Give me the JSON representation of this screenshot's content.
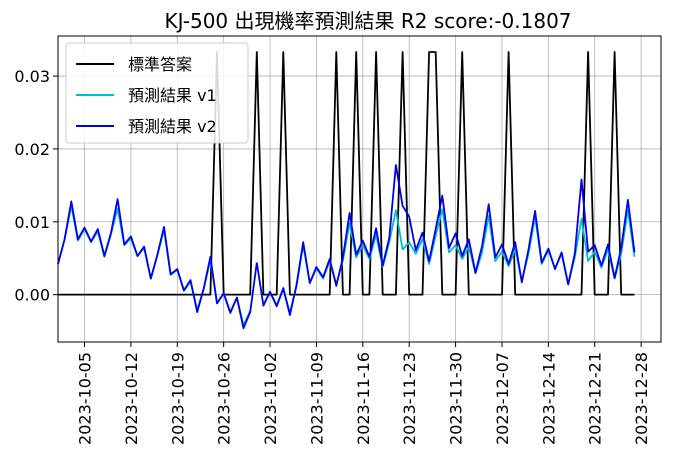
{
  "chart_data": {
    "type": "line",
    "title": "KJ-500 出現機率預測結果  R2 score:-0.1807",
    "xlabel": "",
    "ylabel": "",
    "x_ticks": [
      "2023-10-05",
      "2023-10-12",
      "2023-10-19",
      "2023-10-26",
      "2023-11-02",
      "2023-11-09",
      "2023-11-16",
      "2023-11-23",
      "2023-11-30",
      "2023-12-07",
      "2023-12-14",
      "2023-12-21",
      "2023-12-28"
    ],
    "y_ticks": [
      "0.00",
      "0.01",
      "0.02",
      "0.03"
    ],
    "y_tick_values": [
      0,
      0.01,
      0.02,
      0.03
    ],
    "xlim": [
      "2023-10-01",
      "2023-12-31"
    ],
    "ylim": [
      -0.0065,
      0.0355
    ],
    "grid": true,
    "legend_position": "top-left",
    "series": [
      {
        "name": "標準答案",
        "color": "#000000",
        "points": [
          [
            "2023-10-01",
            0
          ],
          [
            "2023-10-24",
            0
          ],
          [
            "2023-10-25",
            0.0333
          ],
          [
            "2023-10-26",
            0
          ],
          [
            "2023-10-30",
            0
          ],
          [
            "2023-10-31",
            0.0333
          ],
          [
            "2023-11-01",
            0
          ],
          [
            "2023-11-03",
            0
          ],
          [
            "2023-11-04",
            0.0333
          ],
          [
            "2023-11-05",
            0
          ],
          [
            "2023-11-11",
            0
          ],
          [
            "2023-11-12",
            0.0333
          ],
          [
            "2023-11-13",
            0
          ],
          [
            "2023-11-14",
            0
          ],
          [
            "2023-11-15",
            0.0333
          ],
          [
            "2023-11-16",
            0
          ],
          [
            "2023-11-17",
            0
          ],
          [
            "2023-11-18",
            0.0333
          ],
          [
            "2023-11-19",
            0
          ],
          [
            "2023-11-21",
            0
          ],
          [
            "2023-11-22",
            0.0333
          ],
          [
            "2023-11-23",
            0
          ],
          [
            "2023-11-25",
            0
          ],
          [
            "2023-11-26",
            0.0333
          ],
          [
            "2023-11-27",
            0.0333
          ],
          [
            "2023-11-28",
            0
          ],
          [
            "2023-11-30",
            0
          ],
          [
            "2023-12-01",
            0.0333
          ],
          [
            "2023-12-02",
            0
          ],
          [
            "2023-12-07",
            0
          ],
          [
            "2023-12-08",
            0.0333
          ],
          [
            "2023-12-09",
            0
          ],
          [
            "2023-12-19",
            0
          ],
          [
            "2023-12-20",
            0.0333
          ],
          [
            "2023-12-21",
            0
          ],
          [
            "2023-12-23",
            0
          ],
          [
            "2023-12-24",
            0.0333
          ],
          [
            "2023-12-25",
            0
          ],
          [
            "2023-12-27",
            0
          ]
        ]
      },
      {
        "name": "預測結果 v1",
        "color": "#00bcd4",
        "segments": [
          [
            [
              "2023-10-01",
              0.0042
            ],
            [
              "2023-10-02",
              0.0076
            ],
            [
              "2023-10-03",
              0.0122
            ],
            [
              "2023-10-04",
              0.0074
            ],
            [
              "2023-10-05",
              0.009
            ],
            [
              "2023-10-06",
              0.0072
            ],
            [
              "2023-10-07",
              0.0087
            ],
            [
              "2023-10-08",
              0.0052
            ],
            [
              "2023-10-09",
              0.0083
            ],
            [
              "2023-10-10",
              0.0118
            ],
            [
              "2023-10-11",
              0.0068
            ],
            [
              "2023-10-12",
              0.0077
            ],
            [
              "2023-10-13",
              0.0053
            ],
            [
              "2023-10-14",
              0.0064
            ],
            [
              "2023-10-15",
              0.0022
            ],
            [
              "2023-10-16",
              0.0054
            ],
            [
              "2023-10-17",
              0.0089
            ],
            [
              "2023-10-18",
              0.0027
            ],
            [
              "2023-10-19",
              0.0034
            ],
            [
              "2023-10-20",
              0.0005
            ],
            [
              "2023-10-21",
              0.0018
            ],
            [
              "2023-10-22",
              -0.0021
            ],
            [
              "2023-10-23",
              0.0008
            ],
            [
              "2023-10-24",
              0.0048
            ],
            [
              "2023-10-25",
              -0.0012
            ],
            [
              "2023-10-26",
              0.0002
            ],
            [
              "2023-10-27",
              -0.0024
            ],
            [
              "2023-10-28",
              -0.0004
            ],
            [
              "2023-10-29",
              -0.0042
            ],
            [
              "2023-10-30",
              -0.0022
            ]
          ],
          [
            [
              "2023-11-01",
              -0.0013
            ],
            [
              "2023-11-02",
              0.0003
            ],
            [
              "2023-11-03",
              -0.0014
            ],
            [
              "2023-11-04",
              0.0007
            ],
            [
              "2023-11-05",
              -0.0025
            ],
            [
              "2023-11-06",
              0.0012
            ],
            [
              "2023-11-07",
              0.0068
            ],
            [
              "2023-11-08",
              0.0016
            ],
            [
              "2023-11-09",
              0.0036
            ],
            [
              "2023-11-10",
              0.0022
            ],
            [
              "2023-11-11",
              0.0046
            ],
            [
              "2023-11-12",
              0.0014
            ],
            [
              "2023-11-13",
              0.0047
            ],
            [
              "2023-11-14",
              0.0098
            ],
            [
              "2023-11-15",
              0.0051
            ],
            [
              "2023-11-16",
              0.0068
            ],
            [
              "2023-11-17",
              0.0049
            ],
            [
              "2023-11-18",
              0.0082
            ],
            [
              "2023-11-19",
              0.0038
            ],
            [
              "2023-11-20",
              0.0072
            ],
            [
              "2023-11-21",
              0.0116
            ],
            [
              "2023-11-22",
              0.0062
            ],
            [
              "2023-11-23",
              0.0072
            ],
            [
              "2023-11-24",
              0.0056
            ],
            [
              "2023-11-25",
              0.0076
            ],
            [
              "2023-11-26",
              0.0042
            ],
            [
              "2023-11-27",
              0.0081
            ],
            [
              "2023-11-28",
              0.0117
            ],
            [
              "2023-11-29",
              0.0058
            ],
            [
              "2023-11-30",
              0.0068
            ],
            [
              "2023-12-01",
              0.0049
            ],
            [
              "2023-12-02",
              0.0066
            ],
            [
              "2023-12-03",
              0.0029
            ],
            [
              "2023-12-04",
              0.0058
            ],
            [
              "2023-12-05",
              0.0108
            ],
            [
              "2023-12-06",
              0.0046
            ],
            [
              "2023-12-07",
              0.0059
            ],
            [
              "2023-12-08",
              0.0039
            ],
            [
              "2023-12-09",
              0.0062
            ],
            [
              "2023-12-10",
              0.0019
            ],
            [
              "2023-12-11",
              0.0056
            ],
            [
              "2023-12-12",
              0.0107
            ],
            [
              "2023-12-13",
              0.0042
            ],
            [
              "2023-12-14",
              0.0061
            ],
            [
              "2023-12-15",
              0.0036
            ],
            [
              "2023-12-16",
              0.0056
            ],
            [
              "2023-12-17",
              0.0014
            ],
            [
              "2023-12-18",
              0.0052
            ],
            [
              "2023-12-19",
              0.0104
            ],
            [
              "2023-12-20",
              0.0046
            ],
            [
              "2023-12-21",
              0.0059
            ],
            [
              "2023-12-22",
              0.0037
            ],
            [
              "2023-12-23",
              0.0062
            ],
            [
              "2023-12-24",
              0.0022
            ],
            [
              "2023-12-25",
              0.0056
            ],
            [
              "2023-12-26",
              0.0116
            ],
            [
              "2023-12-27",
              0.0052
            ]
          ]
        ]
      },
      {
        "name": "預測結果 v2",
        "color": "#0000ee",
        "segments": [
          [
            [
              "2023-10-01",
              0.0042
            ],
            [
              "2023-10-02",
              0.0076
            ],
            [
              "2023-10-03",
              0.0128
            ],
            [
              "2023-10-04",
              0.0076
            ],
            [
              "2023-10-05",
              0.0092
            ],
            [
              "2023-10-06",
              0.0073
            ],
            [
              "2023-10-07",
              0.009
            ],
            [
              "2023-10-08",
              0.0053
            ],
            [
              "2023-10-09",
              0.0085
            ],
            [
              "2023-10-10",
              0.0131
            ],
            [
              "2023-10-11",
              0.0069
            ],
            [
              "2023-10-12",
              0.008
            ],
            [
              "2023-10-13",
              0.0053
            ],
            [
              "2023-10-14",
              0.0066
            ],
            [
              "2023-10-15",
              0.0022
            ],
            [
              "2023-10-16",
              0.0055
            ],
            [
              "2023-10-17",
              0.0093
            ],
            [
              "2023-10-18",
              0.0028
            ],
            [
              "2023-10-19",
              0.0035
            ],
            [
              "2023-10-20",
              0.0006
            ],
            [
              "2023-10-21",
              0.002
            ],
            [
              "2023-10-22",
              -0.0024
            ],
            [
              "2023-10-23",
              0.0009
            ],
            [
              "2023-10-24",
              0.0052
            ],
            [
              "2023-10-25",
              -0.0012
            ],
            [
              "2023-10-26",
              0.0002
            ],
            [
              "2023-10-27",
              -0.0025
            ],
            [
              "2023-10-28",
              -0.0004
            ],
            [
              "2023-10-29",
              -0.0046
            ],
            [
              "2023-10-30",
              -0.0024
            ],
            [
              "2023-10-31",
              0.0044
            ]
          ],
          [
            [
              "2023-10-31",
              0.0044
            ],
            [
              "2023-11-01",
              -0.0015
            ],
            [
              "2023-11-02",
              0.0004
            ],
            [
              "2023-11-03",
              -0.0016
            ],
            [
              "2023-11-04",
              0.0009
            ],
            [
              "2023-11-05",
              -0.0028
            ],
            [
              "2023-11-06",
              0.0013
            ],
            [
              "2023-11-07",
              0.0072
            ],
            [
              "2023-11-08",
              0.0016
            ],
            [
              "2023-11-09",
              0.0038
            ],
            [
              "2023-11-10",
              0.0024
            ],
            [
              "2023-11-11",
              0.0049
            ],
            [
              "2023-11-12",
              0.0012
            ],
            [
              "2023-11-13",
              0.0051
            ],
            [
              "2023-11-14",
              0.0112
            ],
            [
              "2023-11-15",
              0.0055
            ],
            [
              "2023-11-16",
              0.0074
            ],
            [
              "2023-11-17",
              0.0052
            ],
            [
              "2023-11-18",
              0.0091
            ],
            [
              "2023-11-19",
              0.004
            ],
            [
              "2023-11-20",
              0.0078
            ],
            [
              "2023-11-21",
              0.0178
            ],
            [
              "2023-11-22",
              0.0122
            ],
            [
              "2023-11-23",
              0.0107
            ],
            [
              "2023-11-24",
              0.0061
            ],
            [
              "2023-11-25",
              0.0085
            ],
            [
              "2023-11-26",
              0.0046
            ],
            [
              "2023-11-27",
              0.009
            ],
            [
              "2023-11-28",
              0.0136
            ],
            [
              "2023-11-29",
              0.0064
            ],
            [
              "2023-11-30",
              0.0084
            ],
            [
              "2023-12-01",
              0.0053
            ],
            [
              "2023-12-02",
              0.0076
            ],
            [
              "2023-12-03",
              0.003
            ],
            [
              "2023-12-04",
              0.0067
            ],
            [
              "2023-12-05",
              0.0124
            ],
            [
              "2023-12-06",
              0.0051
            ],
            [
              "2023-12-07",
              0.0069
            ],
            [
              "2023-12-08",
              0.0042
            ],
            [
              "2023-12-09",
              0.0072
            ],
            [
              "2023-12-10",
              0.0017
            ],
            [
              "2023-12-11",
              0.0062
            ],
            [
              "2023-12-12",
              0.0115
            ],
            [
              "2023-12-13",
              0.0044
            ],
            [
              "2023-12-14",
              0.0063
            ],
            [
              "2023-12-15",
              0.0035
            ],
            [
              "2023-12-16",
              0.0058
            ],
            [
              "2023-12-17",
              0.0014
            ],
            [
              "2023-12-18",
              0.0057
            ],
            [
              "2023-12-19",
              0.0158
            ],
            [
              "2023-12-20",
              0.0059
            ],
            [
              "2023-12-21",
              0.0068
            ],
            [
              "2023-12-22",
              0.004
            ],
            [
              "2023-12-23",
              0.0069
            ],
            [
              "2023-12-24",
              0.0023
            ],
            [
              "2023-12-25",
              0.0064
            ],
            [
              "2023-12-26",
              0.013
            ],
            [
              "2023-12-27",
              0.0058
            ]
          ]
        ]
      }
    ]
  }
}
